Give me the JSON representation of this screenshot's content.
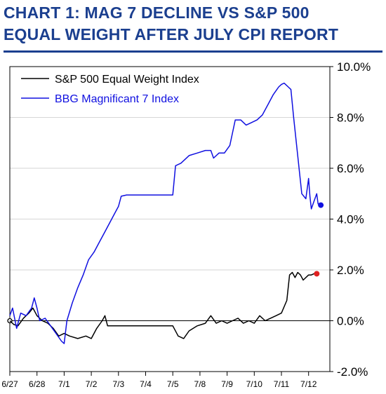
{
  "header": {
    "title_line1": "CHART 1: MAG 7 DECLINE VS S&P 500",
    "title_line2": "EQUAL WEIGHT AFTER JULY CPI REPORT"
  },
  "chart_data": {
    "type": "line",
    "title": "CHART 1: MAG 7 DECLINE VS S&P 500 EQUAL WEIGHT AFTER JULY CPI REPORT",
    "x_tick_labels": [
      "6/27",
      "6/28",
      "7/1",
      "7/2",
      "7/3",
      "7/4",
      "7/5",
      "7/8",
      "7/9",
      "7/10",
      "7/11",
      "7/12"
    ],
    "y_tick_labels": [
      "10.0%",
      "8.0%",
      "6.0%",
      "4.0%",
      "2.0%",
      "0.0%",
      "-2.0%"
    ],
    "ylim": [
      -2.0,
      10.0
    ],
    "y_ticks": [
      10.0,
      8.0,
      6.0,
      4.0,
      2.0,
      0.0,
      -2.0
    ],
    "grid": true,
    "legend_position": "top-left",
    "series": [
      {
        "name": "S&P 500 Equal Weight Index",
        "color": "#000000",
        "end_marker_color": "#e02020",
        "points": [
          [
            0.0,
            0.0
          ],
          [
            0.15,
            -0.15
          ],
          [
            0.3,
            -0.2
          ],
          [
            0.5,
            0.1
          ],
          [
            0.7,
            0.3
          ],
          [
            0.85,
            0.5
          ],
          [
            1.0,
            0.2
          ],
          [
            1.2,
            0.0
          ],
          [
            1.4,
            -0.1
          ],
          [
            1.6,
            -0.3
          ],
          [
            1.8,
            -0.6
          ],
          [
            2.0,
            -0.5
          ],
          [
            2.2,
            -0.6
          ],
          [
            2.5,
            -0.7
          ],
          [
            2.8,
            -0.6
          ],
          [
            3.0,
            -0.7
          ],
          [
            3.2,
            -0.3
          ],
          [
            3.4,
            0.0
          ],
          [
            3.5,
            0.2
          ],
          [
            3.6,
            -0.2
          ],
          [
            3.8,
            -0.2
          ],
          [
            4.0,
            -0.2
          ],
          [
            4.5,
            -0.2
          ],
          [
            5.0,
            -0.2
          ],
          [
            6.0,
            -0.2
          ],
          [
            6.2,
            -0.6
          ],
          [
            6.4,
            -0.7
          ],
          [
            6.6,
            -0.4
          ],
          [
            6.9,
            -0.2
          ],
          [
            7.2,
            -0.1
          ],
          [
            7.4,
            0.2
          ],
          [
            7.6,
            -0.1
          ],
          [
            7.8,
            0.0
          ],
          [
            8.0,
            -0.1
          ],
          [
            8.2,
            0.0
          ],
          [
            8.4,
            0.1
          ],
          [
            8.6,
            -0.1
          ],
          [
            8.8,
            0.0
          ],
          [
            9.0,
            -0.1
          ],
          [
            9.2,
            0.2
          ],
          [
            9.4,
            0.0
          ],
          [
            9.6,
            0.1
          ],
          [
            9.8,
            0.2
          ],
          [
            10.0,
            0.3
          ],
          [
            10.2,
            0.8
          ],
          [
            10.3,
            1.8
          ],
          [
            10.4,
            1.9
          ],
          [
            10.5,
            1.7
          ],
          [
            10.6,
            1.9
          ],
          [
            10.7,
            1.8
          ],
          [
            10.8,
            1.6
          ],
          [
            11.0,
            1.8
          ],
          [
            11.1,
            1.8
          ],
          [
            11.2,
            1.85
          ],
          [
            11.3,
            1.85
          ]
        ]
      },
      {
        "name": "BBG Magnificant 7 Index",
        "color": "#1010e0",
        "end_marker_color": "#1010e0",
        "points": [
          [
            0.0,
            0.2
          ],
          [
            0.1,
            0.5
          ],
          [
            0.25,
            -0.3
          ],
          [
            0.4,
            0.3
          ],
          [
            0.6,
            0.2
          ],
          [
            0.8,
            0.5
          ],
          [
            0.9,
            0.9
          ],
          [
            1.0,
            0.5
          ],
          [
            1.1,
            0.0
          ],
          [
            1.3,
            0.1
          ],
          [
            1.5,
            -0.2
          ],
          [
            1.7,
            -0.5
          ],
          [
            1.9,
            -0.8
          ],
          [
            2.0,
            -0.9
          ],
          [
            2.1,
            0.0
          ],
          [
            2.3,
            0.7
          ],
          [
            2.5,
            1.3
          ],
          [
            2.7,
            1.8
          ],
          [
            2.9,
            2.4
          ],
          [
            3.1,
            2.7
          ],
          [
            3.3,
            3.1
          ],
          [
            3.5,
            3.5
          ],
          [
            3.7,
            3.9
          ],
          [
            3.9,
            4.3
          ],
          [
            4.0,
            4.5
          ],
          [
            4.1,
            4.9
          ],
          [
            4.3,
            4.95
          ],
          [
            4.6,
            4.95
          ],
          [
            5.0,
            4.95
          ],
          [
            5.5,
            4.95
          ],
          [
            6.0,
            4.95
          ],
          [
            6.1,
            6.1
          ],
          [
            6.3,
            6.2
          ],
          [
            6.6,
            6.5
          ],
          [
            6.9,
            6.6
          ],
          [
            7.2,
            6.7
          ],
          [
            7.4,
            6.7
          ],
          [
            7.5,
            6.4
          ],
          [
            7.7,
            6.6
          ],
          [
            7.9,
            6.6
          ],
          [
            8.1,
            6.9
          ],
          [
            8.3,
            7.9
          ],
          [
            8.5,
            7.9
          ],
          [
            8.7,
            7.7
          ],
          [
            8.9,
            7.8
          ],
          [
            9.1,
            7.9
          ],
          [
            9.3,
            8.1
          ],
          [
            9.5,
            8.5
          ],
          [
            9.7,
            8.9
          ],
          [
            9.9,
            9.2
          ],
          [
            10.0,
            9.3
          ],
          [
            10.1,
            9.35
          ],
          [
            10.25,
            9.2
          ],
          [
            10.35,
            9.1
          ],
          [
            10.45,
            8.0
          ],
          [
            10.6,
            6.5
          ],
          [
            10.75,
            5.0
          ],
          [
            10.9,
            4.8
          ],
          [
            11.0,
            5.6
          ],
          [
            11.05,
            4.9
          ],
          [
            11.1,
            4.4
          ],
          [
            11.2,
            4.7
          ],
          [
            11.3,
            5.0
          ],
          [
            11.35,
            4.6
          ],
          [
            11.45,
            4.55
          ]
        ]
      }
    ]
  }
}
